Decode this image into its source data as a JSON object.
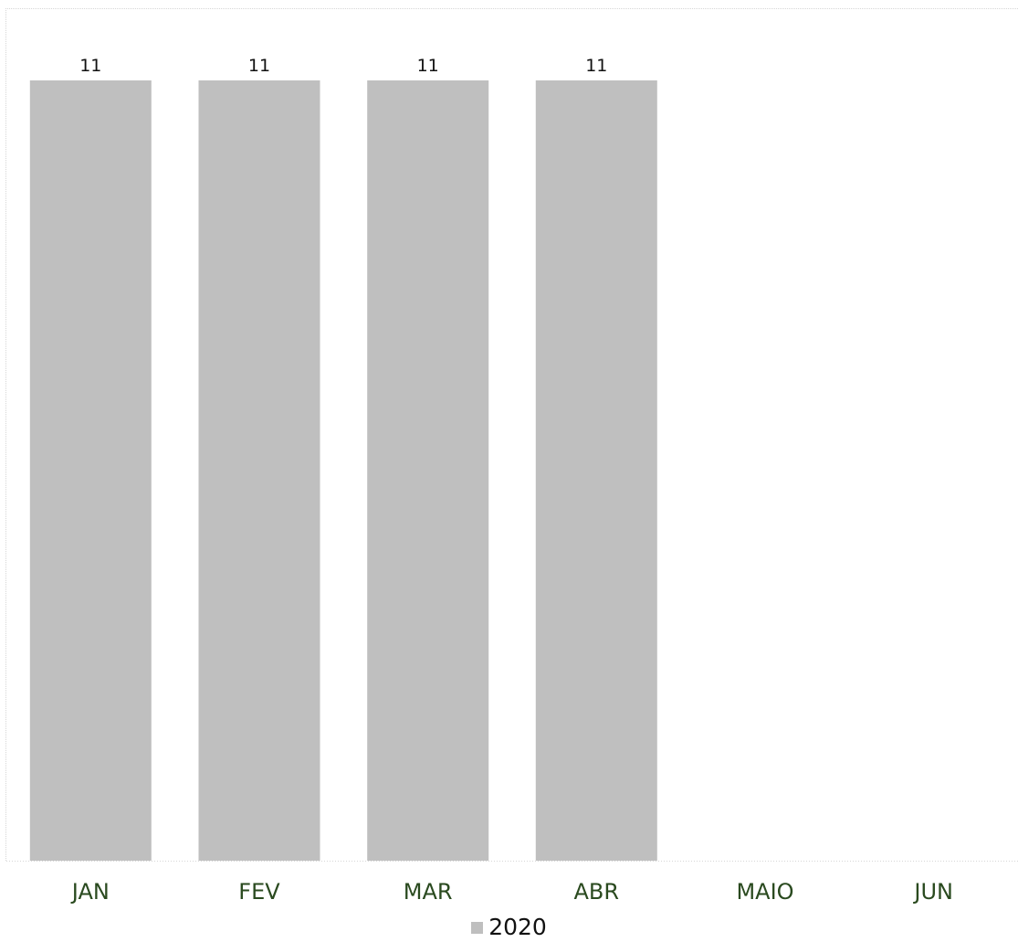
{
  "chart_data": {
    "type": "bar",
    "categories": [
      "JAN",
      "FEV",
      "MAR",
      "ABR",
      "MAIO",
      "JUN"
    ],
    "series": [
      {
        "name": "2020",
        "values": [
          11,
          11,
          11,
          11,
          null,
          null
        ],
        "color": "#bfbfbf"
      }
    ],
    "data_labels": [
      "11",
      "11",
      "11",
      "11",
      "",
      ""
    ],
    "ylim": [
      0,
      11
    ],
    "grid": false,
    "legend": "bottom-center",
    "tick_label_color": "#2a4a1f"
  },
  "legend": {
    "items": [
      {
        "label": "2020",
        "color": "#bfbfbf"
      }
    ]
  }
}
